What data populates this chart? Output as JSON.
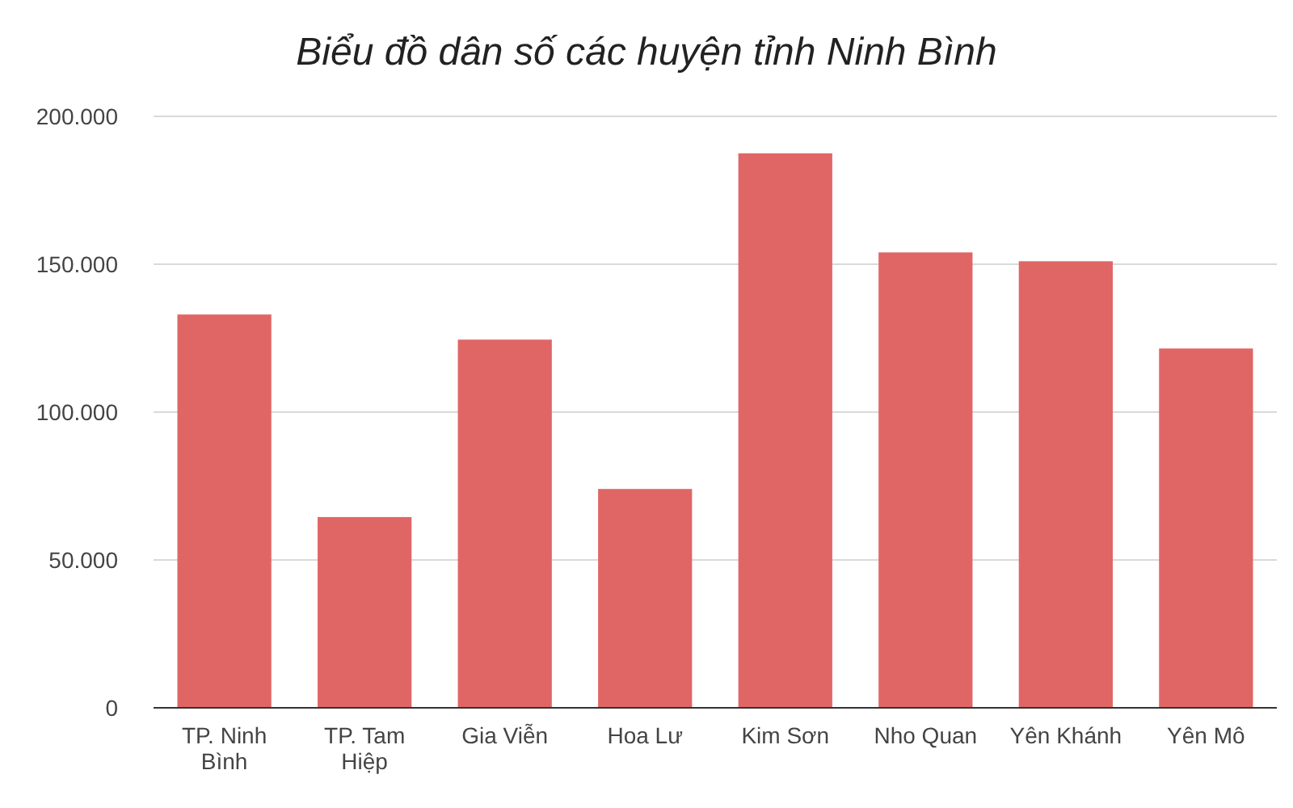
{
  "chart_data": {
    "type": "bar",
    "title": "Biểu đồ dân số các huyện tỉnh Ninh Bình",
    "categories": [
      "TP. Ninh Bình",
      "TP. Tam Hiệp",
      "Gia Viễn",
      "Hoa Lư",
      "Kim Sơn",
      "Nho Quan",
      "Yên Khánh",
      "Yên Mô"
    ],
    "values": [
      133000,
      64500,
      124500,
      74000,
      187500,
      154000,
      151000,
      121500
    ],
    "color": "#e06666",
    "ylim": [
      0,
      200000
    ],
    "yticks": [
      {
        "value": 0,
        "label": "0"
      },
      {
        "value": 50000,
        "label": "50.000"
      },
      {
        "value": 100000,
        "label": "100.000"
      },
      {
        "value": 150000,
        "label": "150.000"
      },
      {
        "value": 200000,
        "label": "200.000"
      }
    ],
    "grid": "y"
  }
}
